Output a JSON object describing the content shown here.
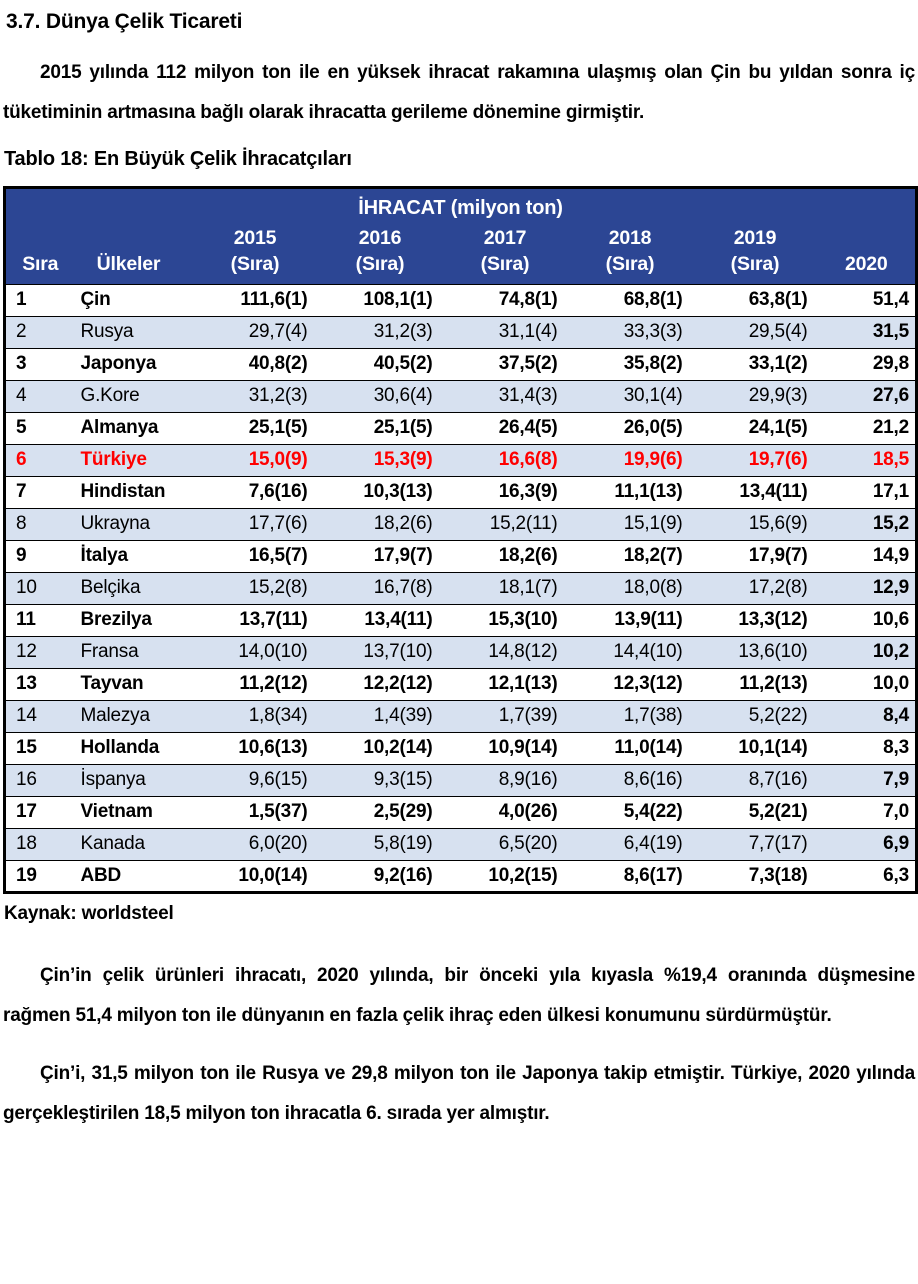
{
  "page": {
    "heading": "3.7. Dünya Çelik Ticareti",
    "paragraph1": "2015 yılında 112 milyon ton ile en yüksek ihracat rakamına ulaşmış olan Çin bu yıldan sonra iç tüketiminin artmasına bağlı olarak ihracatta gerileme dönemine girmiştir.",
    "table_title": "Tablo 18: En Büyük Çelik İhracatçıları",
    "source_label": "Kaynak:",
    "source_value": "worldsteel",
    "paragraph2": "Çin’in çelik ürünleri ihracatı, 2020 yılında, bir önceki yıla kıyasla  %19,4 oranında düşmesine rağmen 51,4 milyon ton ile dünyanın en fazla çelik ihraç eden ülkesi konumunu sürdürmüştür.",
    "paragraph3": "Çin’i, 31,5 milyon ton ile Rusya ve 29,8 milyon ton ile Japonya takip etmiştir. Türkiye, 2020 yılında gerçekleştirilen 18,5 milyon ton ihracatla 6. sırada yer almıştır."
  },
  "table": {
    "span_title": "İHRACAT (milyon ton)",
    "columns": [
      {
        "label": "Sıra"
      },
      {
        "label": "Ülkeler"
      },
      {
        "label": "2015",
        "sub": "(Sıra)"
      },
      {
        "label": "2016",
        "sub": "(Sıra)"
      },
      {
        "label": "2017",
        "sub": "(Sıra)"
      },
      {
        "label": "2018",
        "sub": "(Sıra)"
      },
      {
        "label": "2019",
        "sub": "(Sıra)"
      },
      {
        "label": "2020"
      }
    ],
    "rows": [
      {
        "rank": "1",
        "country": "Çin",
        "values": [
          "111,6(1)",
          "108,1(1)",
          "74,8(1)",
          "68,8(1)",
          "63,8(1)"
        ],
        "value_2020": "51,4",
        "bold": true,
        "highlight": false
      },
      {
        "rank": "2",
        "country": "Rusya",
        "values": [
          "29,7(4)",
          "31,2(3)",
          "31,1(4)",
          "33,3(3)",
          "29,5(4)"
        ],
        "value_2020": "31,5",
        "bold": false,
        "highlight": false
      },
      {
        "rank": "3",
        "country": "Japonya",
        "values": [
          "40,8(2)",
          "40,5(2)",
          "37,5(2)",
          "35,8(2)",
          "33,1(2)"
        ],
        "value_2020": "29,8",
        "bold": true,
        "highlight": false
      },
      {
        "rank": "4",
        "country": "G.Kore",
        "values": [
          "31,2(3)",
          "30,6(4)",
          "31,4(3)",
          "30,1(4)",
          "29,9(3)"
        ],
        "value_2020": "27,6",
        "bold": false,
        "highlight": false
      },
      {
        "rank": "5",
        "country": "Almanya",
        "values": [
          "25,1(5)",
          "25,1(5)",
          "26,4(5)",
          "26,0(5)",
          "24,1(5)"
        ],
        "value_2020": "21,2",
        "bold": true,
        "highlight": false
      },
      {
        "rank": "6",
        "country": "Türkiye",
        "values": [
          "15,0(9)",
          "15,3(9)",
          "16,6(8)",
          "19,9(6)",
          "19,7(6)"
        ],
        "value_2020": "18,5",
        "bold": true,
        "highlight": true
      },
      {
        "rank": "7",
        "country": "Hindistan",
        "values": [
          "7,6(16)",
          "10,3(13)",
          "16,3(9)",
          "11,1(13)",
          "13,4(11)"
        ],
        "value_2020": "17,1",
        "bold": true,
        "highlight": false
      },
      {
        "rank": "8",
        "country": "Ukrayna",
        "values": [
          "17,7(6)",
          "18,2(6)",
          "15,2(11)",
          "15,1(9)",
          "15,6(9)"
        ],
        "value_2020": "15,2",
        "bold": false,
        "highlight": false
      },
      {
        "rank": "9",
        "country": "İtalya",
        "values": [
          "16,5(7)",
          "17,9(7)",
          "18,2(6)",
          "18,2(7)",
          "17,9(7)"
        ],
        "value_2020": "14,9",
        "bold": true,
        "highlight": false
      },
      {
        "rank": "10",
        "country": "Belçika",
        "values": [
          "15,2(8)",
          "16,7(8)",
          "18,1(7)",
          "18,0(8)",
          "17,2(8)"
        ],
        "value_2020": "12,9",
        "bold": false,
        "highlight": false
      },
      {
        "rank": "11",
        "country": "Brezilya",
        "values": [
          "13,7(11)",
          "13,4(11)",
          "15,3(10)",
          "13,9(11)",
          "13,3(12)"
        ],
        "value_2020": "10,6",
        "bold": true,
        "highlight": false
      },
      {
        "rank": "12",
        "country": "Fransa",
        "values": [
          "14,0(10)",
          "13,7(10)",
          "14,8(12)",
          "14,4(10)",
          "13,6(10)"
        ],
        "value_2020": "10,2",
        "bold": false,
        "highlight": false
      },
      {
        "rank": "13",
        "country": "Tayvan",
        "values": [
          "11,2(12)",
          "12,2(12)",
          "12,1(13)",
          "12,3(12)",
          "11,2(13)"
        ],
        "value_2020": "10,0",
        "bold": true,
        "highlight": false
      },
      {
        "rank": "14",
        "country": "Malezya",
        "values": [
          "1,8(34)",
          "1,4(39)",
          "1,7(39)",
          "1,7(38)",
          "5,2(22)"
        ],
        "value_2020": "8,4",
        "bold": false,
        "highlight": false
      },
      {
        "rank": "15",
        "country": "Hollanda",
        "values": [
          "10,6(13)",
          "10,2(14)",
          "10,9(14)",
          "11,0(14)",
          "10,1(14)"
        ],
        "value_2020": "8,3",
        "bold": true,
        "highlight": false
      },
      {
        "rank": "16",
        "country": "İspanya",
        "values": [
          "9,6(15)",
          "9,3(15)",
          "8,9(16)",
          "8,6(16)",
          "8,7(16)"
        ],
        "value_2020": "7,9",
        "bold": false,
        "highlight": false
      },
      {
        "rank": "17",
        "country": "Vietnam",
        "values": [
          "1,5(37)",
          "2,5(29)",
          "4,0(26)",
          "5,4(22)",
          "5,2(21)"
        ],
        "value_2020": "7,0",
        "bold": true,
        "highlight": false
      },
      {
        "rank": "18",
        "country": "Kanada",
        "values": [
          "6,0(20)",
          "5,8(19)",
          "6,5(20)",
          "6,4(19)",
          "7,7(17)"
        ],
        "value_2020": "6,9",
        "bold": false,
        "highlight": false
      },
      {
        "rank": "19",
        "country": "ABD",
        "values": [
          "10,0(14)",
          "9,2(16)",
          "10,2(15)",
          "8,6(17)",
          "7,3(18)"
        ],
        "value_2020": "6,3",
        "bold": true,
        "highlight": false
      }
    ]
  },
  "colors": {
    "header_bg": "#2C4694",
    "header_text": "#FFFFFF",
    "stripe_bg": "#D7E1F0",
    "highlight_text": "#FF0000",
    "border": "#000000"
  }
}
